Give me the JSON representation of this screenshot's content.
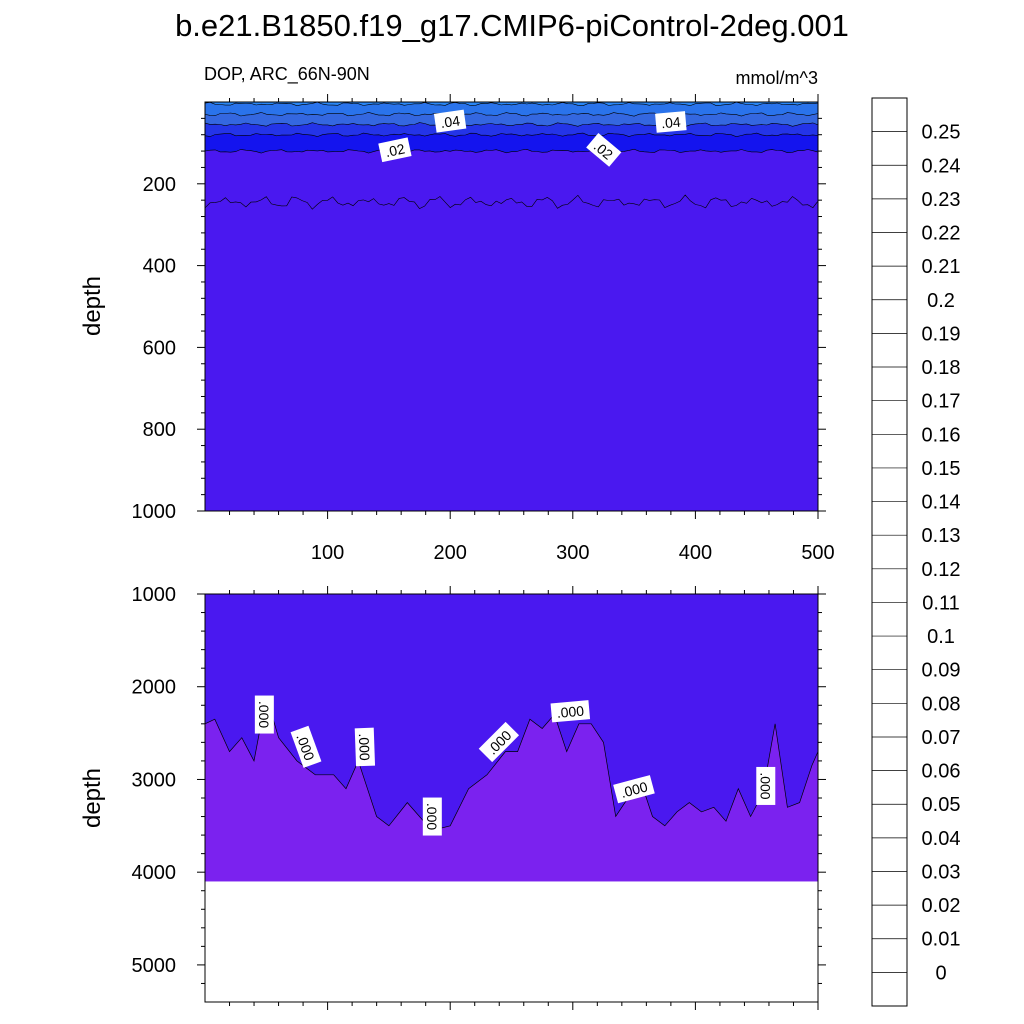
{
  "title": "b.e21.B1850.f19_g17.CMIP6-piControl-2deg.001",
  "chart_data": [
    {
      "type": "contour",
      "panel": "upper",
      "left_label": "DOP, ARC_66N-90N",
      "right_label": "mmol/m^3",
      "ylabel": "depth",
      "xlim": [
        0,
        500
      ],
      "ylim": [
        1000,
        0
      ],
      "x_ticks": [
        100,
        200,
        300,
        400,
        500
      ],
      "y_ticks": [
        200,
        400,
        600,
        800,
        1000
      ],
      "contour_labels": [
        ".04",
        ".04",
        ".02",
        ".02"
      ],
      "layers": [
        {
          "level": 0.05,
          "color": "#2a86f5",
          "mean_depth": 5
        },
        {
          "level": 0.045,
          "color": "#2a73eb",
          "mean_depth": 30
        },
        {
          "level": 0.04,
          "color": "#3467e0",
          "mean_depth": 55
        },
        {
          "level": 0.03,
          "color": "#2434e8",
          "mean_depth": 80
        },
        {
          "level": 0.02,
          "color": "#1414ee",
          "mean_depth": 120
        },
        {
          "level": 0.01,
          "color": "#4a18f0",
          "mean_depth": 245
        }
      ]
    },
    {
      "type": "contour",
      "panel": "lower",
      "ylabel": "depth",
      "xlim": [
        0,
        500
      ],
      "ylim": [
        5400,
        1000
      ],
      "y_ticks": [
        1000,
        2000,
        3000,
        4000,
        5000
      ],
      "contour_labels": [
        ".000",
        ".000",
        ".000",
        ".000",
        ".000",
        ".000",
        ".000",
        ".000"
      ],
      "fill_colors": {
        "upper": "#4a18f0",
        "lower": "#7b22ef"
      },
      "bottom_depth": 4100,
      "zero_contour": [
        [
          0,
          2400
        ],
        [
          8,
          2350
        ],
        [
          20,
          2700
        ],
        [
          30,
          2550
        ],
        [
          40,
          2800
        ],
        [
          50,
          2100
        ],
        [
          60,
          2550
        ],
        [
          75,
          2800
        ],
        [
          90,
          2950
        ],
        [
          105,
          2950
        ],
        [
          115,
          3100
        ],
        [
          125,
          2800
        ],
        [
          140,
          3400
        ],
        [
          150,
          3500
        ],
        [
          165,
          3250
        ],
        [
          175,
          3400
        ],
        [
          185,
          3550
        ],
        [
          200,
          3500
        ],
        [
          215,
          3100
        ],
        [
          230,
          2950
        ],
        [
          245,
          2700
        ],
        [
          255,
          2700
        ],
        [
          265,
          2350
        ],
        [
          275,
          2450
        ],
        [
          285,
          2300
        ],
        [
          295,
          2700
        ],
        [
          305,
          2400
        ],
        [
          315,
          2400
        ],
        [
          325,
          2600
        ],
        [
          335,
          3400
        ],
        [
          345,
          3200
        ],
        [
          355,
          3000
        ],
        [
          365,
          3400
        ],
        [
          375,
          3500
        ],
        [
          385,
          3350
        ],
        [
          395,
          3250
        ],
        [
          405,
          3350
        ],
        [
          415,
          3300
        ],
        [
          425,
          3450
        ],
        [
          435,
          3100
        ],
        [
          445,
          3400
        ],
        [
          455,
          3150
        ],
        [
          465,
          2400
        ],
        [
          475,
          3300
        ],
        [
          485,
          3250
        ],
        [
          495,
          2850
        ],
        [
          500,
          2700
        ]
      ]
    }
  ],
  "colorbar": {
    "labels": [
      "0.25",
      "0.24",
      "0.23",
      "0.22",
      "0.21",
      "0.2",
      "0.19",
      "0.18",
      "0.17",
      "0.16",
      "0.15",
      "0.14",
      "0.13",
      "0.12",
      "0.11",
      "0.1",
      "0.09",
      "0.08",
      "0.07",
      "0.06",
      "0.05",
      "0.04",
      "0.03",
      "0.02",
      "0.01",
      "0"
    ],
    "colors": [
      "#fdb0b0",
      "#e35555",
      "#d11515",
      "#e00000",
      "#ff0d0d",
      "#ff2a00",
      "#ff5500",
      "#ff7800",
      "#ff9600",
      "#ffb000",
      "#ffc81a",
      "#ffe040",
      "#fff686",
      "#ffffcc",
      "#b4dcf6",
      "#93cdf2",
      "#5bb8f4",
      "#1ebcf9",
      "#0aaaf8",
      "#1b8ff5",
      "#2a7cee",
      "#3b6ee3",
      "#3545de",
      "#1d2de8",
      "#0808f0",
      "#4a18f0",
      "#7b22ef"
    ]
  }
}
